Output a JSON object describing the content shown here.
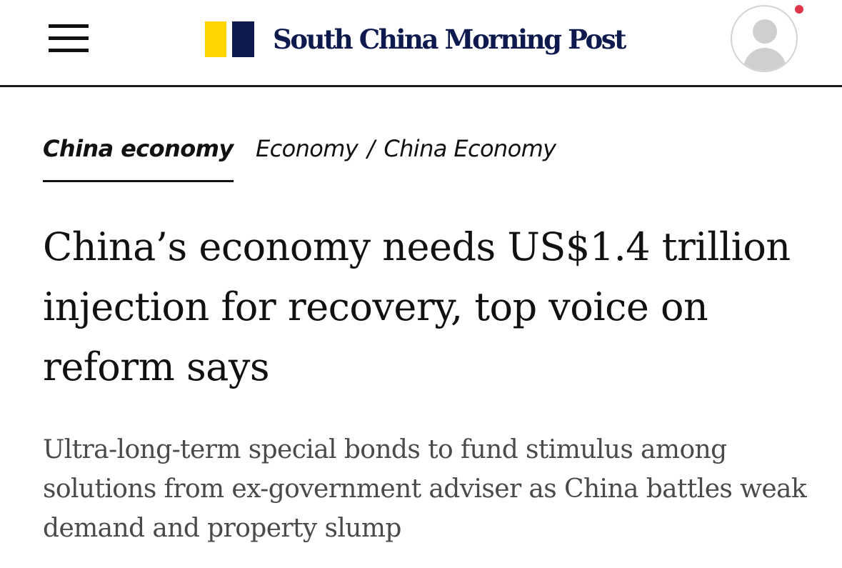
{
  "header": {
    "brand_name": "South China Morning Post",
    "logo_colors": {
      "yellow": "#FFD400",
      "navy": "#0E1A4E"
    },
    "menu_icon": "hamburger-menu-icon",
    "avatar_icon": "user-avatar-icon",
    "notification_dot_color": "#E0364A"
  },
  "section": {
    "primary_tab": "China economy",
    "breadcrumb": [
      "Economy",
      "China Economy"
    ],
    "breadcrumb_separator": "/"
  },
  "article": {
    "headline": "China’s economy needs US$1.4 trillion injection for recovery, top voice on reform says",
    "subheadline": "Ultra-long-term special bonds to fund stimulus among solutions from ex-government adviser as China battles weak demand and property slump"
  }
}
